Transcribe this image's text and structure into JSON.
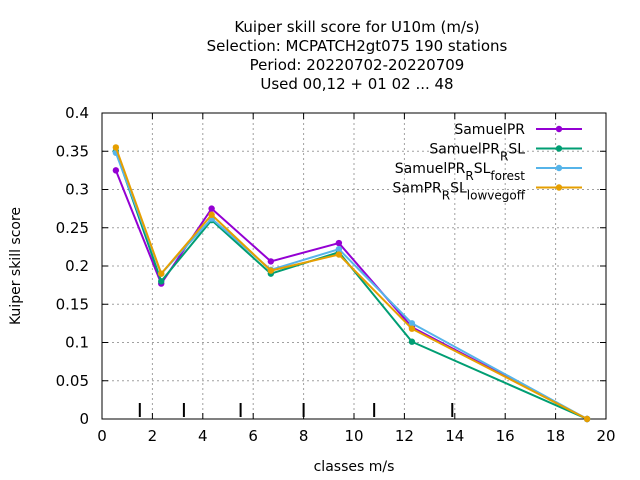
{
  "chart_data": {
    "type": "line",
    "title_lines": [
      "Kuiper skill score  for U10m (m/s)",
      "Selection: MCPATCH2gt075    190 stations",
      "Period: 20220702-20220709",
      "Used  00,12  + 01 02 ... 48"
    ],
    "xlabel": "classes m/s",
    "ylabel": "Kuiper skill score",
    "xlim": [
      0,
      20
    ],
    "ylim": [
      0,
      0.4
    ],
    "x_ticks": [
      "0",
      "2",
      "4",
      "6",
      "8",
      "10",
      "12",
      "14",
      "16",
      "18",
      "20"
    ],
    "y_ticks": [
      "0",
      "0.05",
      "0.1",
      "0.15",
      "0.2",
      "0.25",
      "0.3",
      "0.35",
      "0.4"
    ],
    "grid": true,
    "legend_position": "top-right",
    "class_boundaries": [
      1.5,
      3.25,
      5.5,
      8.0,
      10.8,
      13.9
    ],
    "x": [
      0.55,
      2.35,
      4.35,
      6.7,
      9.4,
      12.3,
      19.25
    ],
    "series": [
      {
        "name": "SamuelPR",
        "color": "#9400d3",
        "values": [
          0.325,
          0.177,
          0.275,
          0.206,
          0.23,
          0.12,
          0.0
        ]
      },
      {
        "name": "SamuelPR_RSL",
        "color": "#009e73",
        "values": [
          0.35,
          0.18,
          0.26,
          0.19,
          0.218,
          0.101,
          0.0
        ]
      },
      {
        "name": "SamuelPR_RSL_forest",
        "color": "#56b4e9",
        "values": [
          0.348,
          0.19,
          0.262,
          0.195,
          0.222,
          0.125,
          0.0
        ]
      },
      {
        "name": "SamPR_RSL_lowvegoff",
        "color": "#e69f00",
        "values": [
          0.355,
          0.19,
          0.267,
          0.194,
          0.215,
          0.118,
          0.0
        ]
      }
    ]
  },
  "legend_display": [
    {
      "base": "SamuelPR",
      "sub1": "",
      "mid": "",
      "sub2": ""
    },
    {
      "base": "SamuelPR",
      "sub1": "R",
      "mid": "SL",
      "sub2": ""
    },
    {
      "base": "SamuelPR",
      "sub1": "R",
      "mid": "SL",
      "sub2": "forest"
    },
    {
      "base": "SamPR",
      "sub1": "R",
      "mid": "SL",
      "sub2": "lowvegoff"
    }
  ]
}
